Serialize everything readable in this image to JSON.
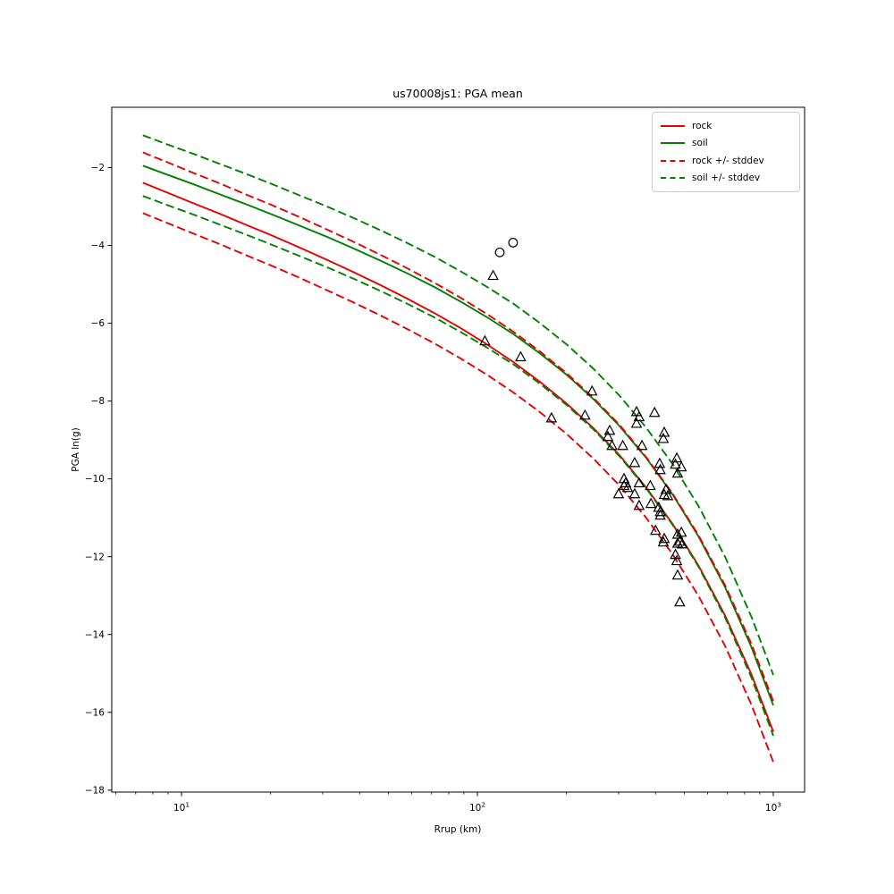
{
  "window": {
    "background": "#ffffff"
  },
  "chart_data": {
    "type": "line+scatter",
    "title": "us70008js1: PGA mean",
    "xlabel": "Rrup (km)",
    "ylabel": "PGA ln(g)",
    "x_scale": "log",
    "y_scale": "linear",
    "xlim": [
      5.81,
      1276
    ],
    "ylim": [
      -18.05,
      -0.45
    ],
    "grid": false,
    "legend_position": "upper right",
    "x_major_ticks": [
      {
        "value": 10,
        "base": "10",
        "exp": "1"
      },
      {
        "value": 100,
        "base": "10",
        "exp": "2"
      },
      {
        "value": 1000,
        "base": "10",
        "exp": "3"
      }
    ],
    "x_minor_ticks": [
      6,
      7,
      8,
      9,
      20,
      30,
      40,
      50,
      60,
      70,
      80,
      90,
      200,
      300,
      400,
      500,
      600,
      700,
      800,
      900
    ],
    "y_ticks": [
      {
        "value": -2,
        "label": "−2"
      },
      {
        "value": -4,
        "label": "−4"
      },
      {
        "value": -6,
        "label": "−6"
      },
      {
        "value": -8,
        "label": "−8"
      },
      {
        "value": -10,
        "label": "−10"
      },
      {
        "value": -12,
        "label": "−12"
      },
      {
        "value": -14,
        "label": "−14"
      },
      {
        "value": -16,
        "label": "−16"
      },
      {
        "value": -18,
        "label": "−18"
      }
    ],
    "colors": {
      "rock": "#e60000",
      "soil": "#008000",
      "markers": "#000000"
    },
    "legend": [
      {
        "label": "rock",
        "color": "#e60000",
        "dash": false
      },
      {
        "label": "soil",
        "color": "#008000",
        "dash": false
      },
      {
        "label": "rock +/- stddev",
        "color": "#e60000",
        "dash": true
      },
      {
        "label": "soil +/- stddev",
        "color": "#008000",
        "dash": true
      }
    ],
    "series": [
      {
        "name": "rock",
        "color": "#e60000",
        "style": "solid",
        "points": [
          [
            7.4,
            -2.39
          ],
          [
            9,
            -2.65
          ],
          [
            11,
            -2.92
          ],
          [
            13.5,
            -3.19
          ],
          [
            16.5,
            -3.47
          ],
          [
            20,
            -3.73
          ],
          [
            25,
            -4.05
          ],
          [
            31,
            -4.37
          ],
          [
            38,
            -4.68
          ],
          [
            47,
            -5.02
          ],
          [
            58,
            -5.37
          ],
          [
            72,
            -5.75
          ],
          [
            88,
            -6.13
          ],
          [
            108,
            -6.55
          ],
          [
            133,
            -7.01
          ],
          [
            163,
            -7.51
          ],
          [
            200,
            -8.06
          ],
          [
            246,
            -8.69
          ],
          [
            302,
            -9.39
          ],
          [
            371,
            -10.21
          ],
          [
            456,
            -11.15
          ],
          [
            560,
            -12.24
          ],
          [
            688,
            -13.52
          ],
          [
            845,
            -15.04
          ],
          [
            1000,
            -16.5
          ]
        ]
      },
      {
        "name": "soil",
        "color": "#008000",
        "style": "solid",
        "points": [
          [
            7.4,
            -1.95
          ],
          [
            9,
            -2.19
          ],
          [
            11,
            -2.43
          ],
          [
            13.5,
            -2.69
          ],
          [
            16.5,
            -2.94
          ],
          [
            20,
            -3.19
          ],
          [
            25,
            -3.49
          ],
          [
            31,
            -3.78
          ],
          [
            38,
            -4.07
          ],
          [
            47,
            -4.39
          ],
          [
            58,
            -4.72
          ],
          [
            72,
            -5.08
          ],
          [
            88,
            -5.45
          ],
          [
            108,
            -5.85
          ],
          [
            133,
            -6.29
          ],
          [
            163,
            -6.78
          ],
          [
            200,
            -7.32
          ],
          [
            246,
            -7.94
          ],
          [
            302,
            -8.64
          ],
          [
            371,
            -9.45
          ],
          [
            456,
            -10.39
          ],
          [
            560,
            -11.49
          ],
          [
            688,
            -12.79
          ],
          [
            845,
            -14.34
          ],
          [
            1000,
            -15.82
          ]
        ]
      },
      {
        "name": "rock +/- stddev",
        "color": "#e60000",
        "style": "dashed",
        "from": "rock",
        "sigma": 0.78
      },
      {
        "name": "soil +/- stddev",
        "color": "#008000",
        "style": "dashed",
        "from": "soil",
        "sigma": 0.78
      }
    ],
    "scatter": [
      {
        "name": "recordings-circles",
        "marker": "circle",
        "edge_color": "#000000",
        "points": [
          [
            119,
            -4.18
          ],
          [
            132,
            -3.93
          ]
        ]
      },
      {
        "name": "recordings-triangles",
        "marker": "triangle-up",
        "edge_color": "#000000",
        "points": [
          [
            113,
            -4.78
          ],
          [
            106,
            -6.46
          ],
          [
            140,
            -6.87
          ],
          [
            178,
            -8.44
          ],
          [
            244,
            -7.75
          ],
          [
            231,
            -8.37
          ],
          [
            345,
            -8.28
          ],
          [
            352,
            -8.41
          ],
          [
            345,
            -8.58
          ],
          [
            397,
            -8.3
          ],
          [
            280,
            -8.76
          ],
          [
            276,
            -8.92
          ],
          [
            428,
            -8.81
          ],
          [
            425,
            -8.97
          ],
          [
            285,
            -9.15
          ],
          [
            310,
            -9.15
          ],
          [
            360,
            -9.15
          ],
          [
            340,
            -9.59
          ],
          [
            413,
            -9.61
          ],
          [
            415,
            -9.77
          ],
          [
            472,
            -9.47
          ],
          [
            467,
            -9.63
          ],
          [
            489,
            -9.7
          ],
          [
            475,
            -9.86
          ],
          [
            313,
            -10.0
          ],
          [
            317,
            -10.11
          ],
          [
            313,
            -10.18
          ],
          [
            322,
            -10.23
          ],
          [
            352,
            -10.11
          ],
          [
            384,
            -10.18
          ],
          [
            300,
            -10.39
          ],
          [
            340,
            -10.39
          ],
          [
            428,
            -10.41
          ],
          [
            434,
            -10.28
          ],
          [
            440,
            -10.44
          ],
          [
            410,
            -10.74
          ],
          [
            415,
            -10.94
          ],
          [
            352,
            -10.69
          ],
          [
            386,
            -10.64
          ],
          [
            415,
            -10.85
          ],
          [
            400,
            -11.33
          ],
          [
            428,
            -11.54
          ],
          [
            489,
            -11.38
          ],
          [
            483,
            -11.61
          ],
          [
            492,
            -11.68
          ],
          [
            425,
            -11.63
          ],
          [
            475,
            -11.43
          ],
          [
            475,
            -11.66
          ],
          [
            467,
            -11.95
          ],
          [
            472,
            -12.11
          ],
          [
            475,
            -12.48
          ],
          [
            483,
            -13.17
          ]
        ]
      }
    ]
  }
}
